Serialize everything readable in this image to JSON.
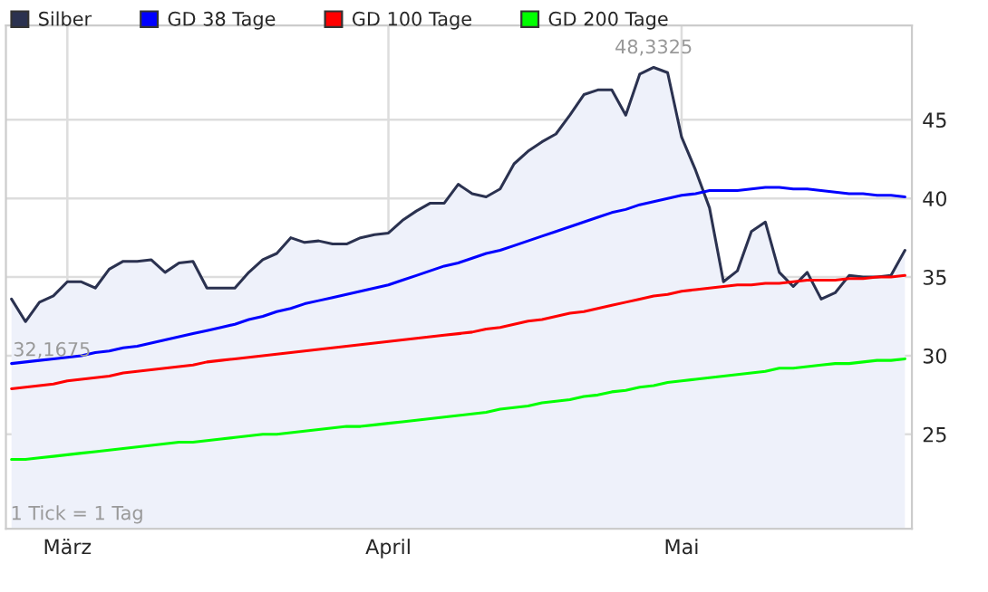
{
  "chart_data": {
    "type": "line",
    "categories": [
      null,
      null,
      null,
      null,
      "März",
      null,
      null,
      null,
      null,
      null,
      null,
      null,
      null,
      null,
      null,
      null,
      null,
      null,
      null,
      null,
      null,
      null,
      null,
      null,
      null,
      null,
      null,
      "April",
      null,
      null,
      null,
      null,
      null,
      null,
      null,
      null,
      null,
      null,
      null,
      null,
      null,
      null,
      null,
      null,
      null,
      null,
      null,
      null,
      "Mai",
      null,
      null,
      null,
      null,
      null,
      null,
      null,
      null,
      null,
      null,
      null,
      null,
      null,
      null,
      null,
      null
    ],
    "ylim": [
      19,
      51
    ],
    "yticks": [
      25,
      30,
      35,
      40,
      45
    ],
    "grid": true,
    "legend": "top",
    "series": [
      {
        "name": "Silber",
        "type": "area",
        "color": "#2b3250",
        "values": [
          33.6,
          32.1675,
          33.4,
          33.8,
          34.7,
          34.7,
          34.3,
          35.5,
          36.0,
          36.0,
          36.1,
          35.3,
          35.9,
          36.0,
          34.3,
          34.3,
          34.3,
          35.3,
          36.1,
          36.5,
          37.5,
          37.2,
          37.3,
          37.1,
          37.1,
          37.5,
          37.7,
          37.8,
          38.6,
          39.2,
          39.7,
          39.7,
          40.9,
          40.3,
          40.1,
          40.6,
          42.2,
          43.0,
          43.6,
          44.1,
          45.3,
          46.6,
          46.9,
          46.9,
          45.3,
          47.9,
          48.3325,
          48.0,
          43.9,
          41.8,
          39.4,
          34.7,
          35.4,
          37.9,
          38.5,
          35.3,
          34.4,
          35.3,
          33.6,
          34.0,
          35.1,
          35.0,
          35.0,
          35.1,
          36.7
        ]
      },
      {
        "name": "GD 38 Tage",
        "color": "#0000ff",
        "values": [
          29.5,
          29.6,
          29.7,
          29.8,
          29.9,
          30.0,
          30.2,
          30.3,
          30.5,
          30.6,
          30.8,
          31.0,
          31.2,
          31.4,
          31.6,
          31.8,
          32.0,
          32.3,
          32.5,
          32.8,
          33.0,
          33.3,
          33.5,
          33.7,
          33.9,
          34.1,
          34.3,
          34.5,
          34.8,
          35.1,
          35.4,
          35.7,
          35.9,
          36.2,
          36.5,
          36.7,
          37.0,
          37.3,
          37.6,
          37.9,
          38.2,
          38.5,
          38.8,
          39.1,
          39.3,
          39.6,
          39.8,
          40.0,
          40.2,
          40.3,
          40.5,
          40.5,
          40.5,
          40.6,
          40.7,
          40.7,
          40.6,
          40.6,
          40.5,
          40.4,
          40.3,
          40.3,
          40.2,
          40.2,
          40.1
        ]
      },
      {
        "name": "GD 100 Tage",
        "color": "#ff0000",
        "values": [
          27.9,
          28.0,
          28.1,
          28.2,
          28.4,
          28.5,
          28.6,
          28.7,
          28.9,
          29.0,
          29.1,
          29.2,
          29.3,
          29.4,
          29.6,
          29.7,
          29.8,
          29.9,
          30.0,
          30.1,
          30.2,
          30.3,
          30.4,
          30.5,
          30.6,
          30.7,
          30.8,
          30.9,
          31.0,
          31.1,
          31.2,
          31.3,
          31.4,
          31.5,
          31.7,
          31.8,
          32.0,
          32.2,
          32.3,
          32.5,
          32.7,
          32.8,
          33.0,
          33.2,
          33.4,
          33.6,
          33.8,
          33.9,
          34.1,
          34.2,
          34.3,
          34.4,
          34.5,
          34.5,
          34.6,
          34.6,
          34.7,
          34.8,
          34.8,
          34.8,
          34.9,
          34.9,
          35.0,
          35.0,
          35.1
        ]
      },
      {
        "name": "GD 200 Tage",
        "color": "#00ff00",
        "values": [
          23.4,
          23.4,
          23.5,
          23.6,
          23.7,
          23.8,
          23.9,
          24.0,
          24.1,
          24.2,
          24.3,
          24.4,
          24.5,
          24.5,
          24.6,
          24.7,
          24.8,
          24.9,
          25.0,
          25.0,
          25.1,
          25.2,
          25.3,
          25.4,
          25.5,
          25.5,
          25.6,
          25.7,
          25.8,
          25.9,
          26.0,
          26.1,
          26.2,
          26.3,
          26.4,
          26.6,
          26.7,
          26.8,
          27.0,
          27.1,
          27.2,
          27.4,
          27.5,
          27.7,
          27.8,
          28.0,
          28.1,
          28.3,
          28.4,
          28.5,
          28.6,
          28.7,
          28.8,
          28.9,
          29.0,
          29.2,
          29.2,
          29.3,
          29.4,
          29.5,
          29.5,
          29.6,
          29.7,
          29.7,
          29.8
        ]
      }
    ],
    "annotations": [
      {
        "text": "48,3325",
        "y": 48.3325
      },
      "32,1675",
      "1 Tick = 1 Tag"
    ]
  }
}
